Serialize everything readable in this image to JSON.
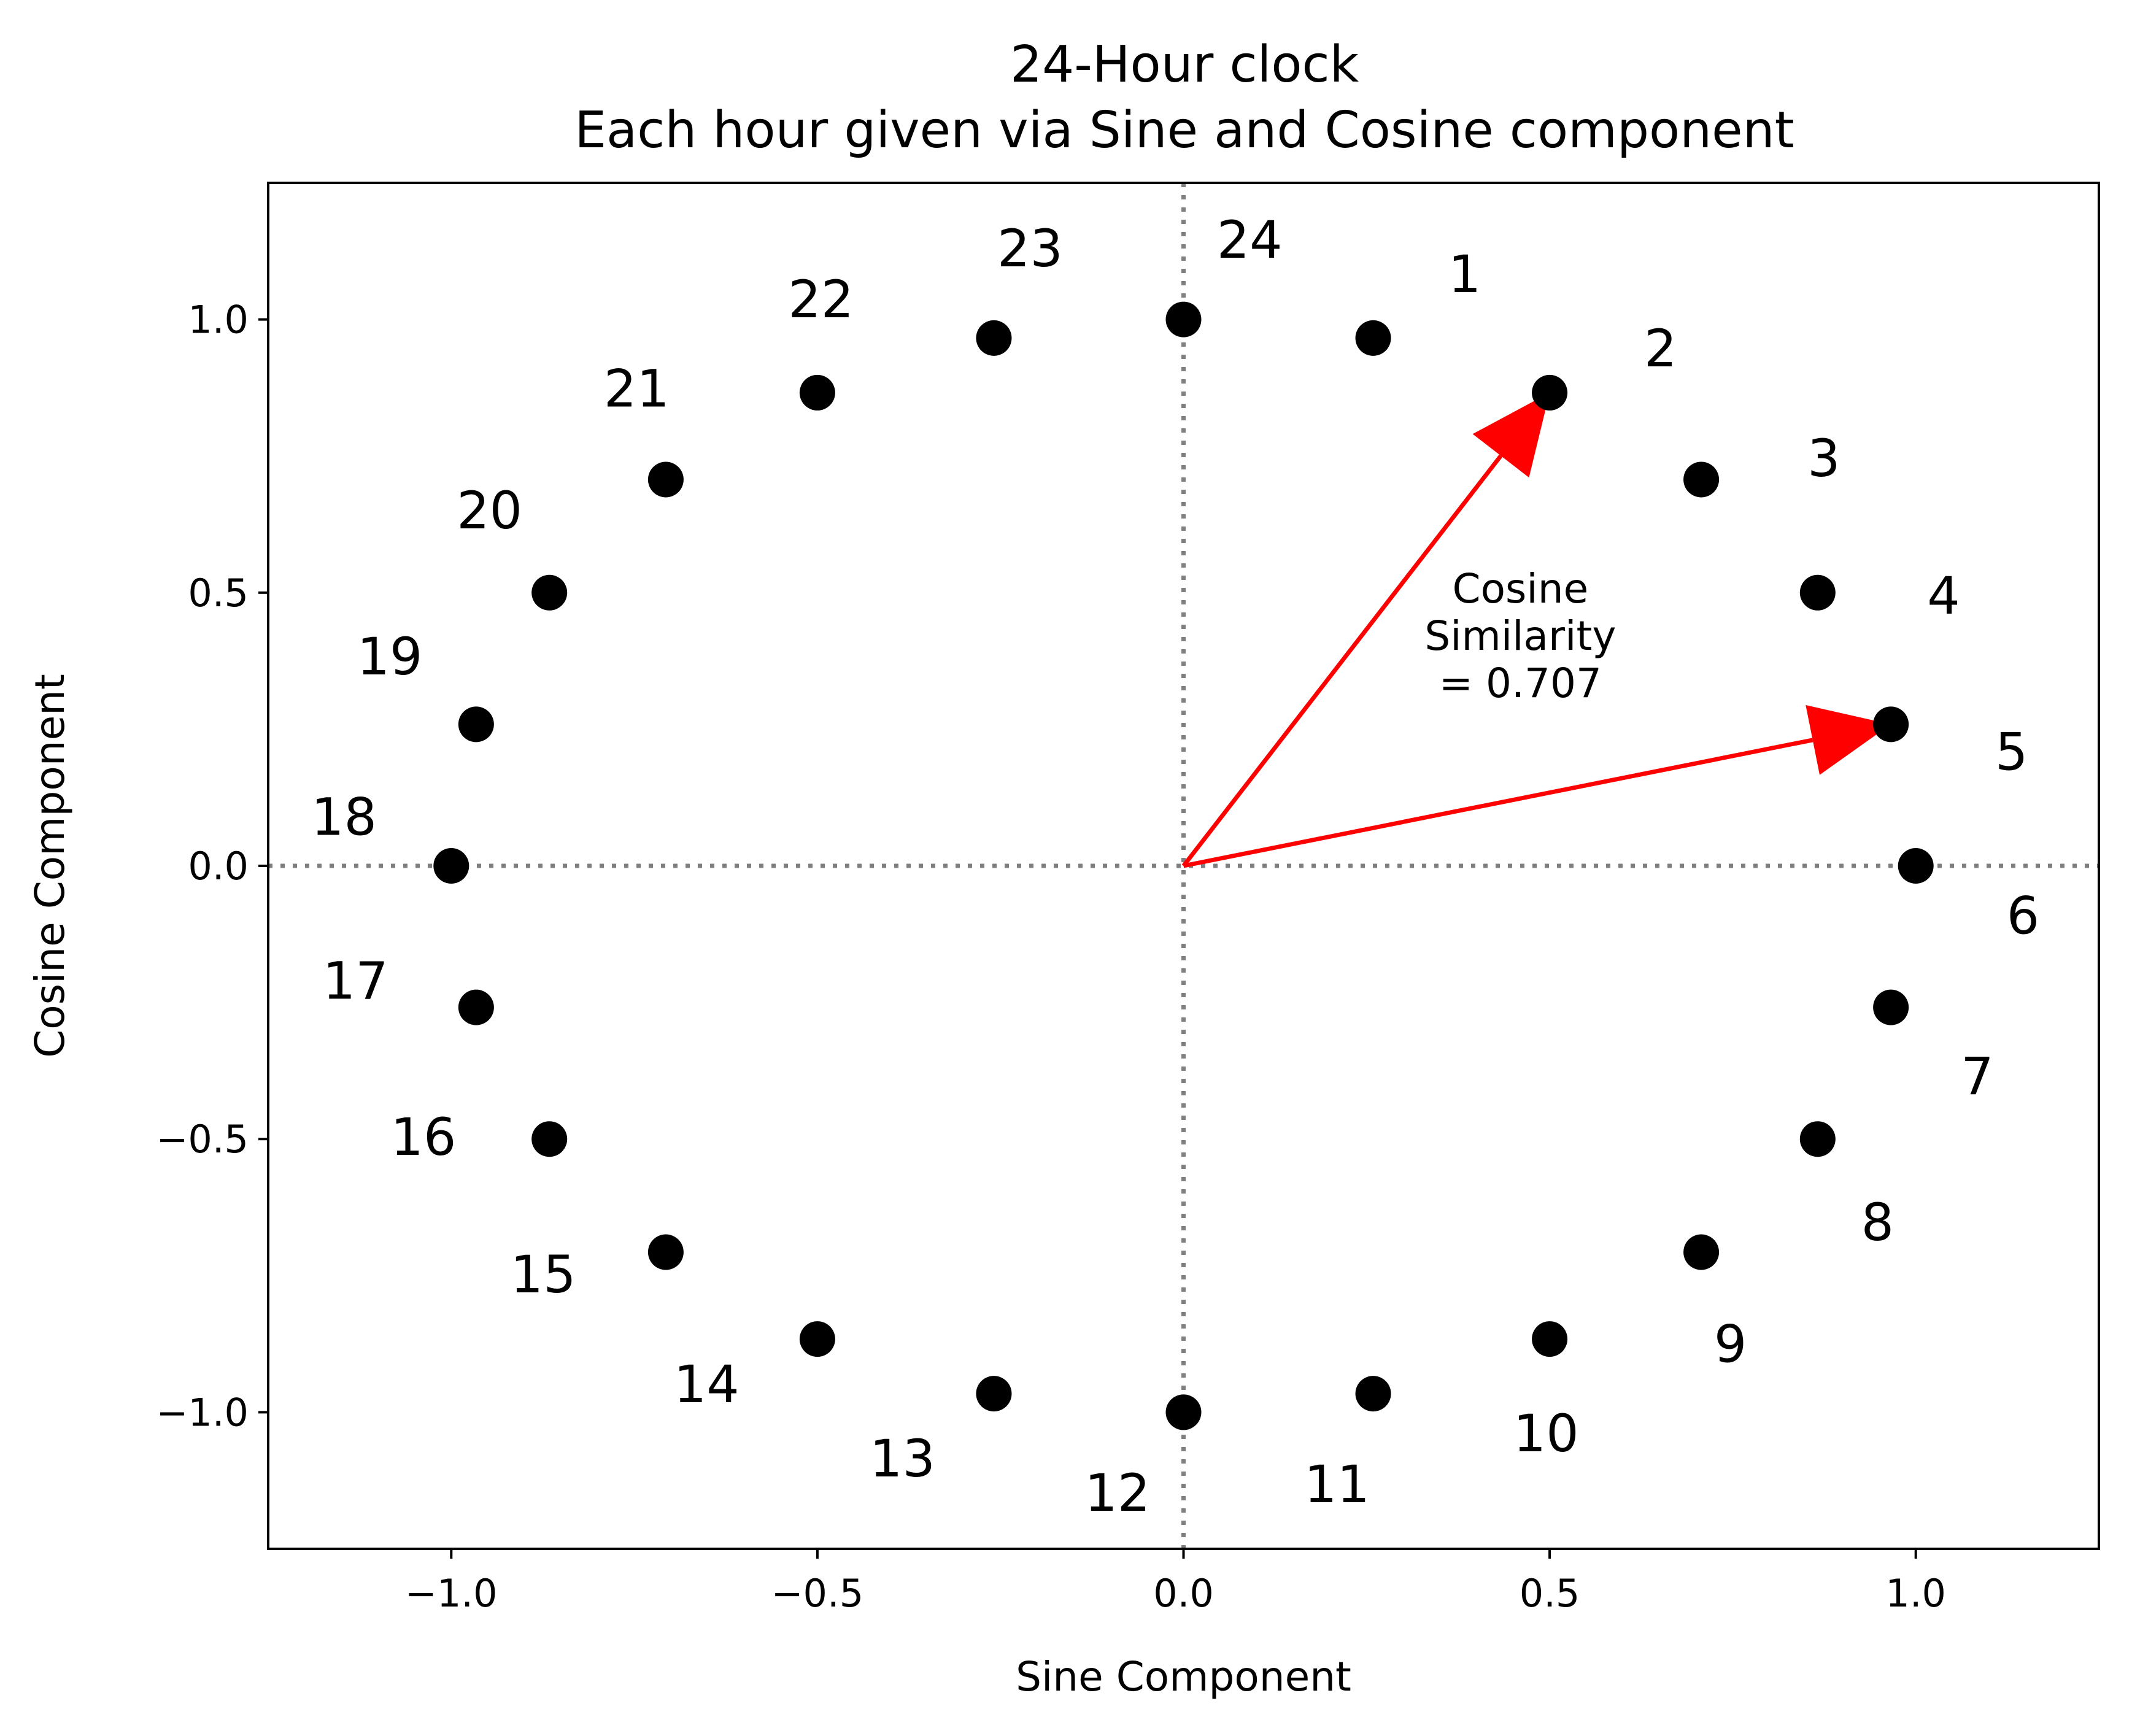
{
  "chart_data": {
    "type": "scatter",
    "title": "24-Hour clock\nEach hour given via Sine and Cosine component",
    "xlabel": "Sine Component",
    "ylabel": "Cosine Component",
    "xlim": [
      -1.25,
      1.25
    ],
    "ylim": [
      -1.25,
      1.25
    ],
    "xticks": [
      -1.0,
      -0.5,
      0.0,
      0.5,
      1.0
    ],
    "yticks": [
      -1.0,
      -0.5,
      0.0,
      0.5,
      1.0
    ],
    "xtick_labels": [
      "−1.0",
      "−0.5",
      "0.0",
      "0.5",
      "1.0"
    ],
    "ytick_labels": [
      "−1.0",
      "−0.5",
      "0.0",
      "0.5",
      "1.0"
    ],
    "grid": false,
    "reference_lines": [
      {
        "orientation": "vertical",
        "value": 0.0,
        "style": "dotted",
        "color": "#808080"
      },
      {
        "orientation": "horizontal",
        "value": 0.0,
        "style": "dotted",
        "color": "#808080"
      }
    ],
    "marker_color": "#000000",
    "points": [
      {
        "label": "1",
        "x": 0.259,
        "y": 0.966
      },
      {
        "label": "2",
        "x": 0.5,
        "y": 0.866
      },
      {
        "label": "3",
        "x": 0.707,
        "y": 0.707
      },
      {
        "label": "4",
        "x": 0.866,
        "y": 0.5
      },
      {
        "label": "5",
        "x": 0.966,
        "y": 0.259
      },
      {
        "label": "6",
        "x": 1.0,
        "y": 0.0
      },
      {
        "label": "7",
        "x": 0.966,
        "y": -0.259
      },
      {
        "label": "8",
        "x": 0.866,
        "y": -0.5
      },
      {
        "label": "9",
        "x": 0.707,
        "y": -0.707
      },
      {
        "label": "10",
        "x": 0.5,
        "y": -0.866
      },
      {
        "label": "11",
        "x": 0.259,
        "y": -0.966
      },
      {
        "label": "12",
        "x": 0.0,
        "y": -1.0
      },
      {
        "label": "13",
        "x": -0.259,
        "y": -0.966
      },
      {
        "label": "14",
        "x": -0.5,
        "y": -0.866
      },
      {
        "label": "15",
        "x": -0.707,
        "y": -0.707
      },
      {
        "label": "16",
        "x": -0.866,
        "y": -0.5
      },
      {
        "label": "17",
        "x": -0.966,
        "y": -0.259
      },
      {
        "label": "18",
        "x": -1.0,
        "y": 0.0
      },
      {
        "label": "19",
        "x": -0.966,
        "y": 0.259
      },
      {
        "label": "20",
        "x": -0.866,
        "y": 0.5
      },
      {
        "label": "21",
        "x": -0.707,
        "y": 0.707
      },
      {
        "label": "22",
        "x": -0.5,
        "y": 0.866
      },
      {
        "label": "23",
        "x": -0.259,
        "y": 0.966
      },
      {
        "label": "24",
        "x": 0.0,
        "y": 1.0
      }
    ],
    "arrows": [
      {
        "from": [
          0.0,
          0.0
        ],
        "to": [
          0.5,
          0.866
        ],
        "color": "#ff0000"
      },
      {
        "from": [
          0.0,
          0.0
        ],
        "to": [
          0.966,
          0.259
        ],
        "color": "#ff0000"
      }
    ],
    "annotation": {
      "text": "Cosine\nSimilarity\n= 0.707",
      "x": 0.46,
      "y": 0.42
    }
  }
}
